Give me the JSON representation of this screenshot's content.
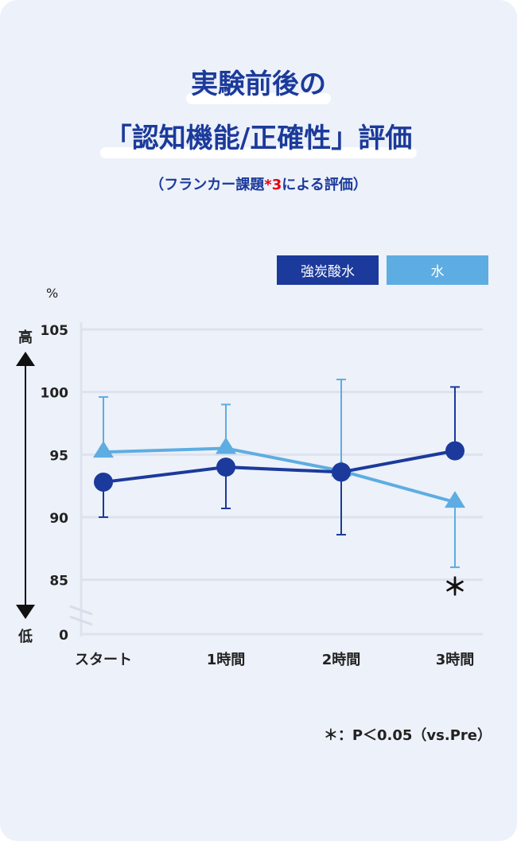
{
  "title_line1": "実験前後の",
  "title_line2": "「認知機能/正確性」評価",
  "subtitle_pre": "（フランカー課題",
  "subtitle_note": "*3",
  "subtitle_post": "による評価）",
  "footnote": "＊：P＜0.05（vs.Pre）",
  "colors": {
    "background": "#edf1f9",
    "carbonated": "#1b3a9b",
    "water": "#5dade2",
    "grid": "#dde2ee"
  },
  "chart_data": {
    "type": "line",
    "ylabel": "%",
    "y_high_label": "高",
    "y_low_label": "低",
    "y_ticks": [
      "105",
      "100",
      "95",
      "90",
      "85",
      "0"
    ],
    "ylim": [
      85,
      105
    ],
    "axis_break": true,
    "grid": true,
    "legend_position": "top-right",
    "categories": [
      "スタート",
      "1時間",
      "2時間",
      "3時間"
    ],
    "series": [
      {
        "name": "強炭酸水",
        "marker": "circle",
        "values": [
          92.8,
          94.0,
          93.6,
          95.3
        ],
        "error_low": [
          90.0,
          90.7,
          88.6,
          null
        ],
        "error_high": [
          null,
          null,
          null,
          100.4
        ]
      },
      {
        "name": "水",
        "marker": "triangle",
        "values": [
          95.2,
          95.5,
          93.7,
          91.2
        ],
        "error_low": [
          null,
          null,
          null,
          86.0
        ],
        "error_high": [
          99.6,
          99.0,
          101.0,
          null
        ]
      }
    ],
    "annotations": [
      {
        "category": "3時間",
        "text": "＊"
      }
    ]
  }
}
